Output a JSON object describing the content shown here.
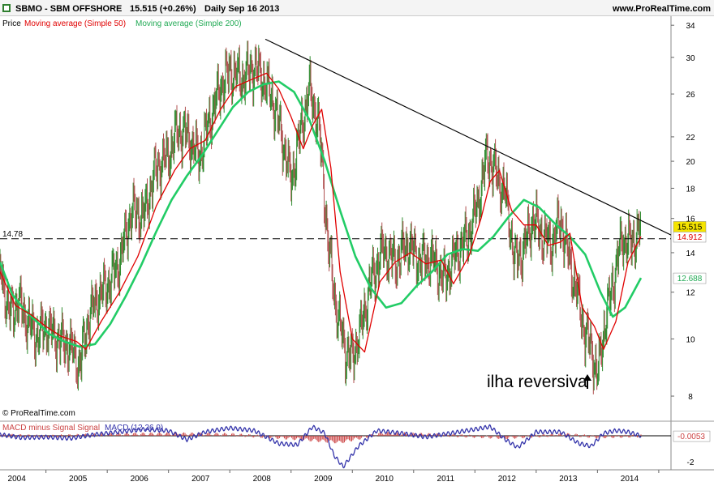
{
  "header": {
    "symbol_text": "SBMO - SBM OFFSHORE",
    "quote_text": "15.515 (+0.26%)",
    "period_text": "Daily  Sep 16 2013",
    "site_text": "www.ProRealTime.com"
  },
  "legend": {
    "price_label": "Price",
    "ma50_label": "Moving average (Simple 50)",
    "ma200_label": "Moving average (Simple 200)"
  },
  "copyright_text": "© ProRealTime.com",
  "macd_legend": {
    "signal_label": "MACD minus Signal Signal",
    "macd_label": "MACD (12 26 9)"
  },
  "colors": {
    "price_up": "#2e8b2e",
    "price_down": "#b05050",
    "ma50": "#e00000",
    "ma200": "#22cc66",
    "macd": "#3333aa",
    "histogram": "#cc4444",
    "trendline": "#000000"
  },
  "chart_data": [
    {
      "type": "line",
      "title": "SBMO - SBM OFFSHORE",
      "scale": "log",
      "ylim": [
        7.3,
        35
      ],
      "y_ticks": [
        8,
        10,
        12,
        14,
        16,
        18,
        20,
        22,
        26,
        30,
        34
      ],
      "x_range": [
        2003.25,
        2014.2
      ],
      "x_ticks": [
        "2004",
        "2005",
        "2006",
        "2007",
        "2008",
        "2009",
        "2010",
        "2011",
        "2012",
        "2013",
        "2014"
      ],
      "series": [
        {
          "name": "Price",
          "x": [
            2003.25,
            2003.4,
            2003.55,
            2003.7,
            2003.85,
            2004.0,
            2004.2,
            2004.4,
            2004.55,
            2004.7,
            2004.85,
            2005.0,
            2005.2,
            2005.4,
            2005.6,
            2005.8,
            2006.0,
            2006.15,
            2006.3,
            2006.5,
            2006.7,
            2006.85,
            2007.0,
            2007.2,
            2007.4,
            2007.55,
            2007.7,
            2007.85,
            2008.0,
            2008.1,
            2008.3,
            2008.45,
            2008.6,
            2008.75,
            2008.9,
            2009.0,
            2009.15,
            2009.3,
            2009.5,
            2009.7,
            2009.9,
            2010.1,
            2010.3,
            2010.5,
            2010.7,
            2010.9,
            2011.05,
            2011.2,
            2011.35,
            2011.5,
            2011.65,
            2011.8,
            2011.95,
            2012.1,
            2012.25,
            2012.4,
            2012.55,
            2012.7,
            2012.8,
            2012.9,
            2013.0,
            2013.1,
            2013.25,
            2013.4,
            2013.55,
            2013.71
          ],
          "values": [
            13.2,
            11.0,
            11.6,
            10.7,
            10.1,
            10.5,
            10.0,
            9.7,
            9.0,
            10.9,
            11.8,
            12.3,
            13.5,
            16.5,
            16.2,
            19.5,
            20.5,
            22.6,
            22.2,
            20.3,
            24.0,
            26.8,
            28.5,
            27.6,
            29.0,
            27.5,
            25.5,
            22.0,
            18.5,
            21.0,
            26.5,
            23.0,
            14.5,
            11.0,
            9.5,
            9.3,
            10.5,
            12.5,
            14.2,
            13.5,
            14.5,
            13.6,
            13.7,
            12.6,
            14.0,
            15.0,
            17.0,
            20.5,
            19.0,
            17.5,
            13.5,
            14.2,
            16.0,
            15.0,
            14.5,
            15.9,
            13.4,
            11.5,
            10.2,
            9.7,
            8.6,
            10.3,
            12.4,
            14.8,
            14.5,
            15.515
          ]
        },
        {
          "name": "Moving average (Simple 50)",
          "x": [
            2003.25,
            2003.5,
            2003.75,
            2004.0,
            2004.25,
            2004.5,
            2004.65,
            2004.9,
            2005.2,
            2005.5,
            2005.8,
            2006.1,
            2006.35,
            2006.6,
            2006.85,
            2007.1,
            2007.35,
            2007.6,
            2007.8,
            2008.0,
            2008.2,
            2008.35,
            2008.5,
            2008.65,
            2008.8,
            2009.0,
            2009.2,
            2009.45,
            2009.7,
            2009.95,
            2010.2,
            2010.45,
            2010.65,
            2010.9,
            2011.1,
            2011.25,
            2011.4,
            2011.6,
            2011.8,
            2012.0,
            2012.2,
            2012.4,
            2012.55,
            2012.75,
            2012.95,
            2013.1,
            2013.3,
            2013.5,
            2013.71
          ],
          "values": [
            13.0,
            11.4,
            11.0,
            10.5,
            10.1,
            9.9,
            9.6,
            10.7,
            12.0,
            13.8,
            16.8,
            19.3,
            21.0,
            21.7,
            24.5,
            26.8,
            27.5,
            28.2,
            26.5,
            23.8,
            21.0,
            23.0,
            24.5,
            19.5,
            13.0,
            10.0,
            9.5,
            12.5,
            13.5,
            14.0,
            13.4,
            13.6,
            12.4,
            13.8,
            16.0,
            18.5,
            19.3,
            16.5,
            15.6,
            15.6,
            14.4,
            14.6,
            15.1,
            11.3,
            10.5,
            9.6,
            10.7,
            13.5,
            14.912
          ]
        },
        {
          "name": "Moving average (Simple 200)",
          "x": [
            2003.25,
            2003.45,
            2003.65,
            2003.85,
            2004.05,
            2004.3,
            2004.55,
            2004.8,
            2005.05,
            2005.3,
            2005.55,
            2005.8,
            2006.05,
            2006.3,
            2006.55,
            2006.8,
            2007.05,
            2007.3,
            2007.55,
            2007.8,
            2008.05,
            2008.3,
            2008.55,
            2008.8,
            2009.05,
            2009.3,
            2009.55,
            2009.8,
            2010.05,
            2010.3,
            2010.55,
            2010.8,
            2011.05,
            2011.3,
            2011.55,
            2011.8,
            2012.05,
            2012.3,
            2012.55,
            2012.8,
            2013.05,
            2013.25,
            2013.45,
            2013.71
          ],
          "values": [
            13.5,
            11.9,
            11.2,
            10.7,
            10.2,
            9.9,
            9.7,
            9.8,
            10.6,
            11.8,
            13.3,
            15.2,
            17.2,
            18.9,
            20.5,
            22.5,
            24.7,
            26.2,
            27.0,
            27.3,
            26.2,
            23.5,
            20.0,
            16.5,
            13.8,
            12.2,
            11.3,
            11.5,
            12.3,
            13.0,
            13.9,
            14.2,
            14.1,
            14.9,
            16.1,
            17.2,
            16.7,
            15.7,
            14.9,
            13.9,
            12.0,
            10.9,
            11.3,
            12.688
          ]
        }
      ],
      "trendline": {
        "x": [
          2007.58,
          2014.2
        ],
        "values": [
          32.2,
          15.0
        ]
      },
      "horizontal_line": {
        "value": 14.78,
        "label": "14.78"
      },
      "last_values": {
        "price": "15.515",
        "ma50": "14.912",
        "ma200": "12.688"
      },
      "annotation": {
        "text": "ilha reversiva",
        "x": 2013.0,
        "value": 8.7
      }
    },
    {
      "type": "line",
      "title": "MACD (12 26 9)",
      "ylim": [
        -2.5,
        1.0
      ],
      "y_ticks": [
        -2
      ],
      "series": [
        {
          "name": "MACD (12 26 9)",
          "x": [
            2003.25,
            2003.6,
            2004.0,
            2004.4,
            2004.8,
            2005.2,
            2005.6,
            2006.0,
            2006.3,
            2006.6,
            2007.0,
            2007.4,
            2007.8,
            2008.1,
            2008.35,
            2008.55,
            2008.7,
            2008.85,
            2009.1,
            2009.4,
            2009.8,
            2010.2,
            2010.6,
            2011.0,
            2011.25,
            2011.5,
            2011.7,
            2012.0,
            2012.4,
            2012.7,
            2012.9,
            2013.1,
            2013.3,
            2013.5,
            2013.71
          ],
          "values": [
            0.1,
            -0.15,
            -0.1,
            -0.2,
            0.1,
            0.3,
            0.5,
            0.4,
            -0.3,
            0.3,
            0.6,
            0.4,
            -0.6,
            -0.7,
            0.7,
            0.2,
            -1.5,
            -2.4,
            -0.8,
            0.4,
            0.2,
            -0.1,
            0.2,
            0.5,
            0.7,
            -0.3,
            -0.9,
            0.3,
            0.3,
            -0.6,
            -0.8,
            0.2,
            0.4,
            0.3,
            -0.0053
          ]
        },
        {
          "name": "MACD minus Signal Signal",
          "x": [
            2003.25,
            2004.0,
            2005.0,
            2006.0,
            2007.0,
            2008.0,
            2008.8,
            2009.5,
            2010.5,
            2011.5,
            2012.5,
            2013.0,
            2013.71
          ],
          "values": [
            0.05,
            -0.05,
            0.1,
            0.15,
            0.1,
            -0.2,
            -0.5,
            0.2,
            0.05,
            -0.15,
            0.1,
            -0.1,
            0.0
          ]
        }
      ],
      "last_value": "-0.0053"
    }
  ]
}
